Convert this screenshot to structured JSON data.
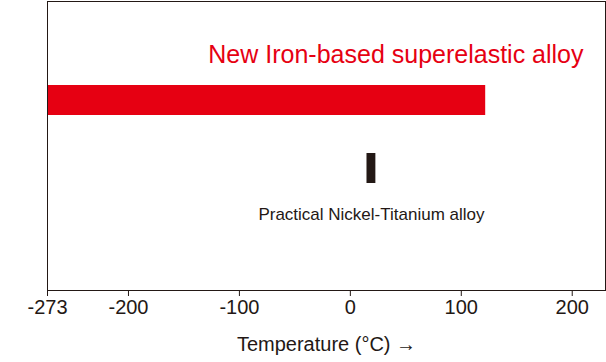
{
  "chart_data": {
    "type": "bar",
    "orientation": "horizontal",
    "categories": [
      "New Iron-based superelastic alloy",
      "Practical Nickel-Titanium alloy"
    ],
    "start": [
      -273,
      15
    ],
    "end": [
      122,
      23
    ],
    "colors": [
      "#e60012",
      "#231815"
    ],
    "xlabel": "Temperature (°C)",
    "xlim": [
      -273,
      230
    ],
    "xticks": [
      -273,
      -200,
      -100,
      0,
      100,
      200
    ],
    "tick_labels": "x",
    "grid": false
  }
}
